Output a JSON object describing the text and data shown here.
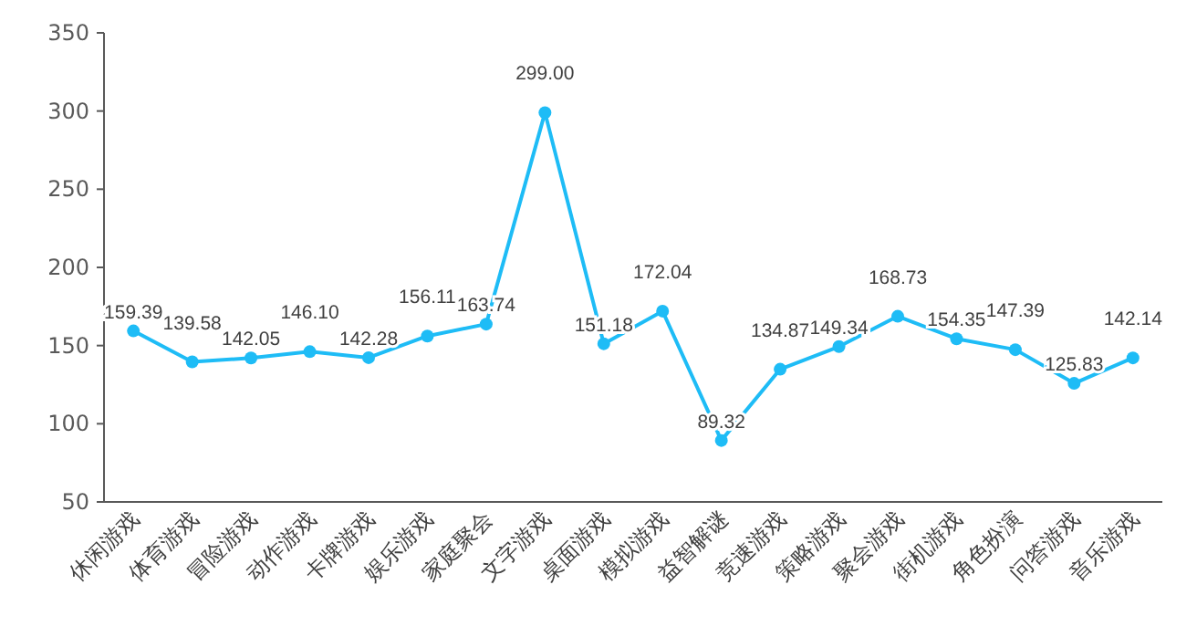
{
  "chart_data": {
    "type": "line",
    "categories": [
      "休闲游戏",
      "体育游戏",
      "冒险游戏",
      "动作游戏",
      "卡牌游戏",
      "娱乐游戏",
      "家庭聚会",
      "文字游戏",
      "桌面游戏",
      "模拟游戏",
      "益智解谜",
      "竞速游戏",
      "策略游戏",
      "聚会游戏",
      "街机游戏",
      "角色扮演",
      "问答游戏",
      "音乐游戏"
    ],
    "series": [
      {
        "color": "#1ebcf6",
        "values": [
          159.39,
          139.58,
          142.05,
          146.1,
          142.28,
          156.11,
          163.74,
          299.0,
          151.18,
          172.04,
          89.32,
          134.87,
          149.34,
          168.73,
          154.35,
          147.39,
          125.83,
          142.14
        ],
        "value_labels": [
          "159.39",
          "139.58",
          "142.05",
          "146.10",
          "142.28",
          "156.11",
          "163.74",
          "299.00",
          "151.18",
          "172.04",
          "89.32",
          "134.87",
          "149.34",
          "168.73",
          "154.35",
          "147.39",
          "125.83",
          "142.14"
        ]
      }
    ],
    "ylim": [
      50,
      350
    ],
    "yticks": [
      50,
      100,
      150,
      200,
      250,
      300,
      350
    ],
    "grid": false,
    "marker": "circle",
    "line_style": "solid"
  }
}
